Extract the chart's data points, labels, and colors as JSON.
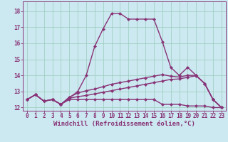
{
  "xlabel": "Windchill (Refroidissement éolien,°C)",
  "background_color": "#cce8f0",
  "grid_color": "#99ccbb",
  "line_color": "#883377",
  "xlim": [
    -0.5,
    23.5
  ],
  "ylim": [
    11.8,
    18.6
  ],
  "xticks": [
    0,
    1,
    2,
    3,
    4,
    5,
    6,
    7,
    8,
    9,
    10,
    11,
    12,
    13,
    14,
    15,
    16,
    17,
    18,
    19,
    20,
    21,
    22,
    23
  ],
  "yticks": [
    12,
    13,
    14,
    15,
    16,
    17,
    18
  ],
  "xlabel_fontsize": 6.5,
  "tick_fontsize": 5.5,
  "line1_x": [
    0,
    1,
    2,
    3,
    4,
    5,
    6,
    7,
    8,
    9,
    10,
    11,
    12,
    13,
    14,
    15,
    16,
    17,
    18,
    19,
    20,
    21,
    22,
    23
  ],
  "line1_y": [
    12.5,
    12.8,
    12.4,
    12.5,
    12.2,
    12.5,
    12.5,
    12.5,
    12.5,
    12.5,
    12.5,
    12.5,
    12.5,
    12.5,
    12.5,
    12.5,
    12.2,
    12.2,
    12.2,
    12.1,
    12.1,
    12.1,
    12.0,
    12.0
  ],
  "line2_x": [
    0,
    1,
    2,
    3,
    4,
    5,
    6,
    7,
    8,
    9,
    10,
    11,
    12,
    13,
    14,
    15,
    16,
    17,
    18,
    19,
    20,
    21,
    22,
    23
  ],
  "line2_y": [
    12.5,
    12.8,
    12.4,
    12.5,
    12.2,
    12.6,
    13.0,
    14.0,
    15.8,
    16.9,
    17.85,
    17.85,
    17.5,
    17.5,
    17.5,
    17.5,
    16.1,
    14.5,
    14.0,
    14.5,
    14.0,
    13.5,
    12.5,
    12.0
  ],
  "line3_x": [
    0,
    1,
    2,
    3,
    4,
    5,
    6,
    7,
    8,
    9,
    10,
    11,
    12,
    13,
    14,
    15,
    16,
    17,
    18,
    19,
    20,
    21,
    22,
    23
  ],
  "line3_y": [
    12.5,
    12.8,
    12.4,
    12.5,
    12.2,
    12.65,
    12.9,
    13.05,
    13.15,
    13.3,
    13.45,
    13.55,
    13.65,
    13.75,
    13.85,
    13.95,
    14.05,
    13.95,
    13.9,
    14.0,
    14.0,
    13.5,
    12.5,
    12.0
  ],
  "line4_x": [
    0,
    1,
    2,
    3,
    4,
    5,
    6,
    7,
    8,
    9,
    10,
    11,
    12,
    13,
    14,
    15,
    16,
    17,
    18,
    19,
    20,
    21,
    22,
    23
  ],
  "line4_y": [
    12.5,
    12.8,
    12.4,
    12.5,
    12.2,
    12.58,
    12.68,
    12.75,
    12.85,
    12.95,
    13.05,
    13.15,
    13.25,
    13.35,
    13.45,
    13.55,
    13.65,
    13.75,
    13.78,
    13.88,
    13.98,
    13.5,
    12.5,
    12.0
  ]
}
